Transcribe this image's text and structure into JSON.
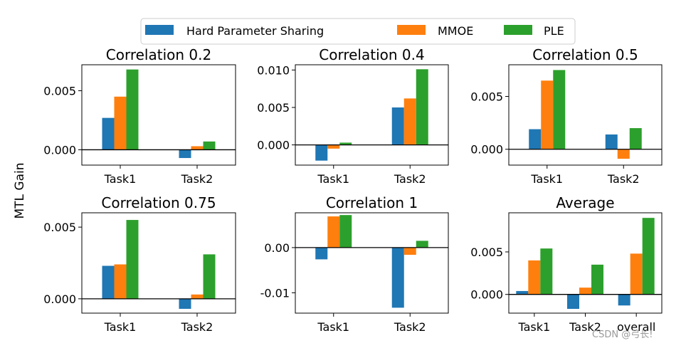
{
  "figure": {
    "ylabel": "MTL Gain",
    "watermark": "CSDN @弓长!"
  },
  "colors": {
    "Hard Parameter Sharing": "#1f77b4",
    "MMOE": "#ff7f0e",
    "PLE": "#2ca02c"
  },
  "legend": {
    "placement": "top-center",
    "entries": [
      "Hard Parameter Sharing",
      "MMOE",
      "PLE"
    ]
  },
  "chart_data": [
    {
      "type": "bar",
      "title": "Correlation 0.2",
      "categories": [
        "Task1",
        "Task2"
      ],
      "series": [
        {
          "name": "Hard Parameter Sharing",
          "values": [
            0.0027,
            -0.0007
          ]
        },
        {
          "name": "MMOE",
          "values": [
            0.0045,
            0.0003
          ]
        },
        {
          "name": "PLE",
          "values": [
            0.0068,
            0.0007
          ]
        }
      ],
      "ylim": [
        -0.0013,
        0.0072
      ],
      "yticks": [
        0.0,
        0.005
      ],
      "ytick_labels": [
        "0.000",
        "0.005"
      ]
    },
    {
      "type": "bar",
      "title": "Correlation 0.4",
      "categories": [
        "Task1",
        "Task2"
      ],
      "series": [
        {
          "name": "Hard Parameter Sharing",
          "values": [
            -0.0021,
            0.005
          ]
        },
        {
          "name": "MMOE",
          "values": [
            -0.0005,
            0.0062
          ]
        },
        {
          "name": "PLE",
          "values": [
            0.0003,
            0.0101
          ]
        }
      ],
      "ylim": [
        -0.0027,
        0.0107
      ],
      "yticks": [
        0.0,
        0.005,
        0.01
      ],
      "ytick_labels": [
        "0.000",
        "0.005",
        "0.010"
      ]
    },
    {
      "type": "bar",
      "title": "Correlation 0.5",
      "categories": [
        "Task1",
        "Task2"
      ],
      "series": [
        {
          "name": "Hard Parameter Sharing",
          "values": [
            0.0019,
            0.0014
          ]
        },
        {
          "name": "MMOE",
          "values": [
            0.0065,
            -0.0009
          ]
        },
        {
          "name": "PLE",
          "values": [
            0.0075,
            0.002
          ]
        }
      ],
      "ylim": [
        -0.0015,
        0.008
      ],
      "yticks": [
        0.0,
        0.005
      ],
      "ytick_labels": [
        "0.000",
        "0.005"
      ]
    },
    {
      "type": "bar",
      "title": "Correlation 0.75",
      "categories": [
        "Task1",
        "Task2"
      ],
      "series": [
        {
          "name": "Hard Parameter Sharing",
          "values": [
            0.0023,
            -0.0007
          ]
        },
        {
          "name": "MMOE",
          "values": [
            0.0024,
            0.0003
          ]
        },
        {
          "name": "PLE",
          "values": [
            0.0055,
            0.0031
          ]
        }
      ],
      "ylim": [
        -0.001,
        0.006
      ],
      "yticks": [
        0.0,
        0.005
      ],
      "ytick_labels": [
        "0.000",
        "0.005"
      ]
    },
    {
      "type": "bar",
      "title": "Correlation 1",
      "categories": [
        "Task1",
        "Task2"
      ],
      "series": [
        {
          "name": "Hard Parameter Sharing",
          "values": [
            -0.0026,
            -0.0133
          ]
        },
        {
          "name": "MMOE",
          "values": [
            0.0069,
            -0.0016
          ]
        },
        {
          "name": "PLE",
          "values": [
            0.0072,
            0.0015
          ]
        }
      ],
      "ylim": [
        -0.0145,
        0.0077
      ],
      "yticks": [
        -0.01,
        0.0
      ],
      "ytick_labels": [
        "-0.01",
        "0.00"
      ]
    },
    {
      "type": "bar",
      "title": "Average",
      "categories": [
        "Task1",
        "Task2",
        "overall"
      ],
      "series": [
        {
          "name": "Hard Parameter Sharing",
          "values": [
            0.0004,
            -0.0017,
            -0.0013
          ]
        },
        {
          "name": "MMOE",
          "values": [
            0.004,
            0.0008,
            0.0048
          ]
        },
        {
          "name": "PLE",
          "values": [
            0.0054,
            0.0035,
            0.009
          ]
        }
      ],
      "ylim": [
        -0.0022,
        0.0096
      ],
      "yticks": [
        0.0,
        0.005
      ],
      "ytick_labels": [
        "0.000",
        "0.005"
      ]
    }
  ]
}
